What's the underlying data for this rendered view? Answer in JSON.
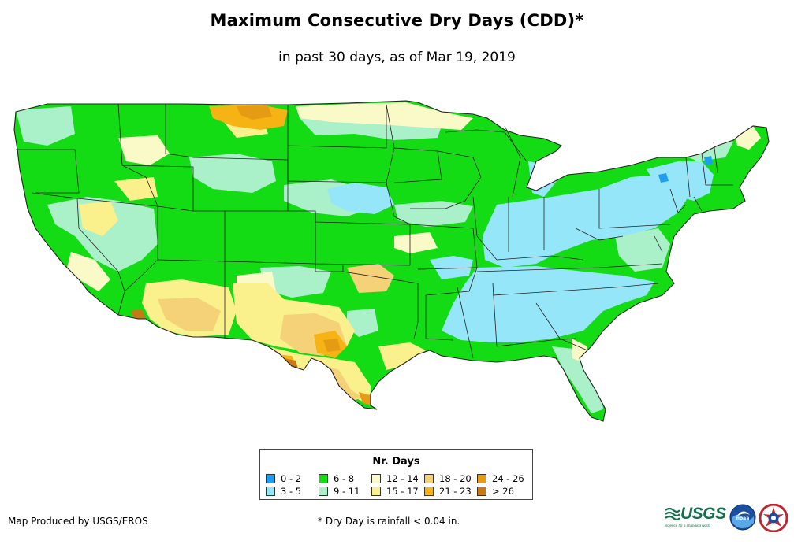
{
  "header": {
    "title": "Maximum Consecutive Dry Days (CDD)*",
    "subtitle": "in past 30 days, as of Mar 19, 2019"
  },
  "legend": {
    "title": "Nr. Days",
    "items": [
      {
        "label": "0 - 2",
        "color": "#1f9ef0"
      },
      {
        "label": "3 - 5",
        "color": "#96e6fa"
      },
      {
        "label": "6 - 8",
        "color": "#14dc14"
      },
      {
        "label": "9 - 11",
        "color": "#aaf0c8"
      },
      {
        "label": "12 - 14",
        "color": "#fafac8"
      },
      {
        "label": "15 - 17",
        "color": "#faf08c"
      },
      {
        "label": "18 - 20",
        "color": "#f5d278"
      },
      {
        "label": "21 - 23",
        "color": "#f5b414"
      },
      {
        "label": "24 - 26",
        "color": "#e69b14"
      },
      {
        "label": "> 26",
        "color": "#c87814"
      }
    ]
  },
  "footer": {
    "credit": "Map Produced by USGS/EROS",
    "note": "* Dry Day is rainfall < 0.04 in."
  },
  "logos": {
    "usgs": "USGS",
    "usgs_tagline": "science for a changing world",
    "noaa": "noaa"
  }
}
